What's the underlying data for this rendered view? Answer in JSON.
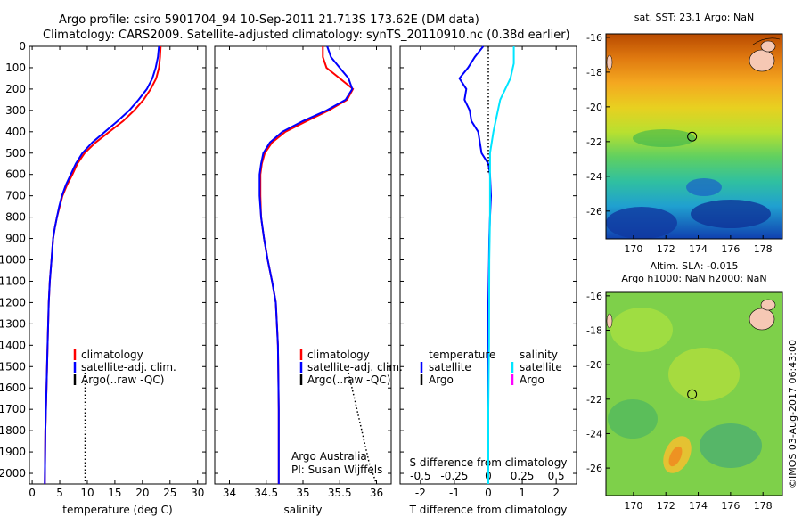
{
  "header": {
    "line1": "Argo profile: csiro 5901704_94 10-Sep-2011 21.713S 173.62E (DM data)",
    "line2": "Climatology: CARS2009. Satellite-adjusted climatology: synTS_20110910.nc (0.38d earlier)"
  },
  "colors": {
    "climatology": "#ff0000",
    "satellite": "#0000ff",
    "argo": "#000000",
    "satellite_salinity_diff": "#00e5ff",
    "argo_salinity_diff": "#ff00ff"
  },
  "side_text": {
    "credit": "Argo Australia",
    "pi": "PI: Susan Wijffels",
    "stamp": "©IMOS 03-Aug-2017 06:43:00"
  },
  "legends": {
    "temperature": [
      "climatology",
      "satellite-adj. clim.",
      "Argo(..raw -QC)"
    ],
    "salinity": [
      "climatology",
      "satellite-adj. clim.",
      "Argo(..raw -QC)"
    ],
    "difference": {
      "temp_header": "temperature",
      "sal_header": "salinity",
      "items": [
        "satellite",
        "Argo"
      ]
    }
  },
  "chart_data": [
    {
      "type": "line",
      "id": "temperature-profile",
      "xlabel": "temperature (deg C)",
      "ylabel": "",
      "xlim": [
        -0.5,
        31.5
      ],
      "ylim": [
        2050,
        0
      ],
      "xticks": [
        0,
        5,
        10,
        15,
        20,
        25,
        30
      ],
      "yticks": [
        0,
        100,
        200,
        300,
        400,
        500,
        600,
        700,
        800,
        900,
        1000,
        1100,
        1200,
        1300,
        1400,
        1500,
        1600,
        1700,
        1800,
        1900,
        2000
      ],
      "series": [
        {
          "name": "climatology",
          "color": "#ff0000",
          "x": [
            23.3,
            23.2,
            23.0,
            22.5,
            21.5,
            20.2,
            18.5,
            16.5,
            14.0,
            11.5,
            9.5,
            8.2,
            7.3,
            6.3,
            5.5,
            5.0,
            4.5,
            4.1,
            3.8,
            3.5,
            3.2,
            3.0,
            2.8,
            2.6,
            2.4,
            2.3
          ],
          "y": [
            0,
            50,
            100,
            150,
            200,
            250,
            300,
            350,
            400,
            450,
            500,
            550,
            600,
            650,
            700,
            750,
            800,
            850,
            900,
            1000,
            1100,
            1200,
            1400,
            1600,
            1800,
            2050
          ]
        },
        {
          "name": "satellite-adj. clim.",
          "color": "#0000ff",
          "x": [
            23.0,
            22.8,
            22.4,
            21.8,
            20.8,
            19.3,
            17.6,
            15.5,
            13.2,
            10.9,
            9.1,
            7.9,
            7.0,
            6.1,
            5.4,
            4.9,
            4.5,
            4.1,
            3.8,
            3.5,
            3.2,
            3.0,
            2.8,
            2.6,
            2.4,
            2.3
          ],
          "y": [
            0,
            50,
            100,
            150,
            200,
            250,
            300,
            350,
            400,
            450,
            500,
            550,
            600,
            650,
            700,
            750,
            800,
            850,
            900,
            1000,
            1100,
            1200,
            1400,
            1600,
            1800,
            2050
          ]
        },
        {
          "name": "Argo(..raw -QC)",
          "color": "#000000",
          "dotted": true,
          "x": [
            9.6,
            9.6,
            9.6,
            9.6
          ],
          "y": [
            1530,
            1700,
            1900,
            2050
          ]
        }
      ]
    },
    {
      "type": "line",
      "id": "salinity-profile",
      "xlabel": "salinity",
      "ylabel": "",
      "xlim": [
        33.8,
        36.2
      ],
      "ylim": [
        2050,
        0
      ],
      "xticks": [
        34,
        34.5,
        35,
        35.5,
        36
      ],
      "series": [
        {
          "name": "climatology",
          "color": "#ff0000",
          "x": [
            35.27,
            35.27,
            35.32,
            35.5,
            35.68,
            35.6,
            35.35,
            35.05,
            34.76,
            34.58,
            34.48,
            34.44,
            34.42,
            34.42,
            34.43,
            34.47,
            34.52,
            34.58,
            34.63,
            34.66,
            34.67,
            34.67
          ],
          "y": [
            0,
            50,
            100,
            150,
            200,
            250,
            300,
            350,
            400,
            450,
            500,
            550,
            600,
            700,
            800,
            900,
            1000,
            1100,
            1200,
            1400,
            1700,
            2050
          ]
        },
        {
          "name": "satellite-adj. clim.",
          "color": "#0000ff",
          "x": [
            35.33,
            35.38,
            35.5,
            35.62,
            35.67,
            35.58,
            35.32,
            35.0,
            34.72,
            34.55,
            34.46,
            34.43,
            34.41,
            34.41,
            34.43,
            34.47,
            34.52,
            34.58,
            34.63,
            34.66,
            34.67,
            34.67
          ],
          "y": [
            0,
            50,
            100,
            150,
            200,
            250,
            300,
            350,
            400,
            450,
            500,
            550,
            600,
            700,
            800,
            900,
            1000,
            1100,
            1200,
            1400,
            1700,
            2050
          ]
        },
        {
          "name": "Argo(..raw -QC)",
          "color": "#000000",
          "dotted": true,
          "x": [
            35.62,
            35.7,
            35.8,
            35.9,
            36.0
          ],
          "y": [
            1530,
            1650,
            1800,
            1950,
            2050
          ]
        }
      ]
    },
    {
      "type": "line",
      "id": "difference-profile",
      "xlabel": "T difference from climatology",
      "xlabel_top": "S difference from climatology",
      "xlim": [
        -2.6,
        2.6
      ],
      "ylim": [
        2050,
        0
      ],
      "xticks": [
        -2,
        -1,
        0,
        1,
        2
      ],
      "xticks_top": [
        -0.5,
        -0.25,
        0,
        0.25,
        0.5
      ],
      "series": [
        {
          "name": "temperature satellite",
          "color": "#0000ff",
          "x": [
            -0.15,
            -0.4,
            -0.6,
            -0.85,
            -0.65,
            -0.7,
            -0.55,
            -0.5,
            -0.3,
            -0.25,
            -0.2,
            0.0,
            0.05,
            0.08,
            0.05,
            0.03,
            0.02,
            0.0,
            0.0,
            0.0,
            0.0
          ],
          "y": [
            0,
            50,
            100,
            150,
            200,
            250,
            300,
            350,
            400,
            450,
            500,
            550,
            600,
            700,
            800,
            900,
            1000,
            1200,
            1500,
            1800,
            2050
          ]
        },
        {
          "name": "salinity satellite",
          "color": "#00e5ff",
          "x": [
            0.75,
            0.75,
            0.65,
            0.35,
            0.15,
            0.05,
            0.05,
            0.05,
            0.03,
            0.02,
            0.0,
            0.0
          ],
          "y": [
            0,
            80,
            150,
            250,
            400,
            500,
            600,
            800,
            1000,
            1400,
            1700,
            2050
          ]
        },
        {
          "name": "zero line",
          "color": "#000000",
          "dotted": true,
          "x": [
            0,
            0
          ],
          "y": [
            0,
            600
          ]
        }
      ]
    },
    {
      "type": "heatmap",
      "id": "sst-map",
      "title": "sat. SST: 23.1  Argo: NaN",
      "xlim": [
        168.3,
        179.2
      ],
      "ylim": [
        -27.6,
        -15.8
      ],
      "xticks": [
        170,
        172,
        174,
        176,
        178
      ],
      "yticks": [
        -16,
        -18,
        -20,
        -22,
        -24,
        -26
      ],
      "marker": {
        "lon": 173.62,
        "lat": -21.713
      }
    },
    {
      "type": "heatmap",
      "id": "sla-map",
      "title": "Altim. SLA: -0.015",
      "subtitle": "Argo h1000: NaN h2000: NaN",
      "xlim": [
        168.3,
        179.2
      ],
      "ylim": [
        -27.6,
        -15.8
      ],
      "xticks": [
        170,
        172,
        174,
        176,
        178
      ],
      "yticks": [
        -16,
        -18,
        -20,
        -22,
        -24,
        -26
      ],
      "marker": {
        "lon": 173.62,
        "lat": -21.713
      }
    }
  ]
}
